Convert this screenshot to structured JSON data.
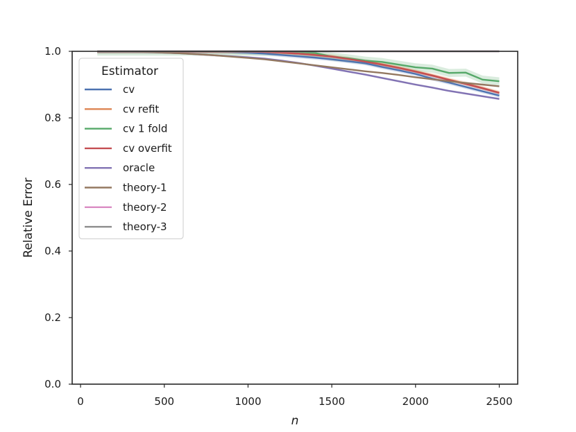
{
  "chart_data": {
    "type": "line",
    "xlabel": "n",
    "ylabel": "Relative Error",
    "xlim": [
      -50,
      2610
    ],
    "ylim": [
      0.0,
      1.0
    ],
    "x_ticks": [
      0,
      500,
      1000,
      1500,
      2000,
      2500
    ],
    "y_ticks": [
      0.0,
      0.2,
      0.4,
      0.6,
      0.8,
      1.0
    ],
    "x_tick_labels": [
      "0",
      "500",
      "1000",
      "1500",
      "2000",
      "2500"
    ],
    "y_tick_labels": [
      "0.0",
      "0.2",
      "0.4",
      "0.6",
      "0.8",
      "1.0"
    ],
    "grid": false,
    "legend": {
      "title": "Estimator",
      "placement": "upper-left"
    },
    "x": [
      100,
      200,
      300,
      400,
      500,
      600,
      700,
      800,
      900,
      1000,
      1100,
      1200,
      1300,
      1400,
      1500,
      1600,
      1700,
      1800,
      1900,
      2000,
      2100,
      2200,
      2300,
      2400,
      2500
    ],
    "series": [
      {
        "name": "cv",
        "color": "#4c72b0",
        "values": [
          0.999,
          0.999,
          0.999,
          0.999,
          0.999,
          0.999,
          0.999,
          0.999,
          0.998,
          0.996,
          0.993,
          0.989,
          0.985,
          0.981,
          0.976,
          0.97,
          0.964,
          0.953,
          0.943,
          0.932,
          0.918,
          0.906,
          0.893,
          0.88,
          0.867
        ],
        "band": 0.006
      },
      {
        "name": "cv refit",
        "color": "#dd8452",
        "values": [
          0.999,
          0.999,
          0.999,
          0.999,
          0.999,
          0.999,
          0.999,
          0.999,
          0.999,
          0.999,
          0.998,
          0.996,
          0.993,
          0.99,
          0.985,
          0.978,
          0.97,
          0.961,
          0.951,
          0.94,
          0.928,
          0.915,
          0.903,
          0.89,
          0.876
        ],
        "band": 0.006
      },
      {
        "name": "cv 1 fold",
        "color": "#55a868",
        "values": [
          0.999,
          0.999,
          0.999,
          0.999,
          0.999,
          0.999,
          0.999,
          0.999,
          0.999,
          0.999,
          0.999,
          0.999,
          0.998,
          0.995,
          0.984,
          0.979,
          0.972,
          0.968,
          0.96,
          0.952,
          0.948,
          0.935,
          0.936,
          0.915,
          0.91
        ],
        "band": 0.012
      },
      {
        "name": "cv overfit",
        "color": "#c44e52",
        "values": [
          0.999,
          0.999,
          0.999,
          0.999,
          0.999,
          0.999,
          0.999,
          0.999,
          0.999,
          0.999,
          0.998,
          0.996,
          0.993,
          0.989,
          0.984,
          0.977,
          0.969,
          0.96,
          0.95,
          0.939,
          0.927,
          0.914,
          0.902,
          0.889,
          0.875
        ],
        "band": 0.004
      },
      {
        "name": "oracle",
        "color": "#8172b3",
        "values": [
          0.999,
          0.999,
          0.999,
          0.998,
          0.996,
          0.994,
          0.991,
          0.988,
          0.985,
          0.982,
          0.978,
          0.972,
          0.965,
          0.957,
          0.948,
          0.939,
          0.93,
          0.92,
          0.91,
          0.9,
          0.891,
          0.881,
          0.873,
          0.865,
          0.857
        ],
        "band": 0.003
      },
      {
        "name": "theory-1",
        "color": "#937860",
        "values": [
          0.999,
          0.999,
          0.999,
          0.998,
          0.996,
          0.994,
          0.991,
          0.988,
          0.984,
          0.98,
          0.976,
          0.97,
          0.964,
          0.958,
          0.952,
          0.946,
          0.94,
          0.935,
          0.929,
          0.922,
          0.916,
          0.91,
          0.905,
          0.9,
          0.895
        ],
        "band": 0.0
      },
      {
        "name": "theory-2",
        "color": "#da8bc3",
        "values": [
          1.0,
          1.0,
          1.0,
          1.0,
          1.0,
          1.0,
          1.0,
          1.0,
          1.0,
          1.0,
          1.0,
          1.0,
          1.0,
          1.0,
          1.0,
          1.0,
          1.0,
          1.0,
          1.0,
          1.0,
          1.0,
          1.0,
          1.0,
          1.0,
          1.0
        ],
        "band": 0.0
      },
      {
        "name": "theory-3",
        "color": "#8c8c8c",
        "values": [
          1.0,
          1.0,
          1.0,
          1.0,
          1.0,
          1.0,
          1.0,
          1.0,
          1.0,
          1.0,
          1.0,
          1.0,
          1.0,
          1.0,
          1.0,
          1.0,
          1.0,
          1.0,
          1.0,
          1.0,
          1.0,
          1.0,
          1.0,
          1.0,
          1.0
        ],
        "band": 0.0
      }
    ]
  }
}
